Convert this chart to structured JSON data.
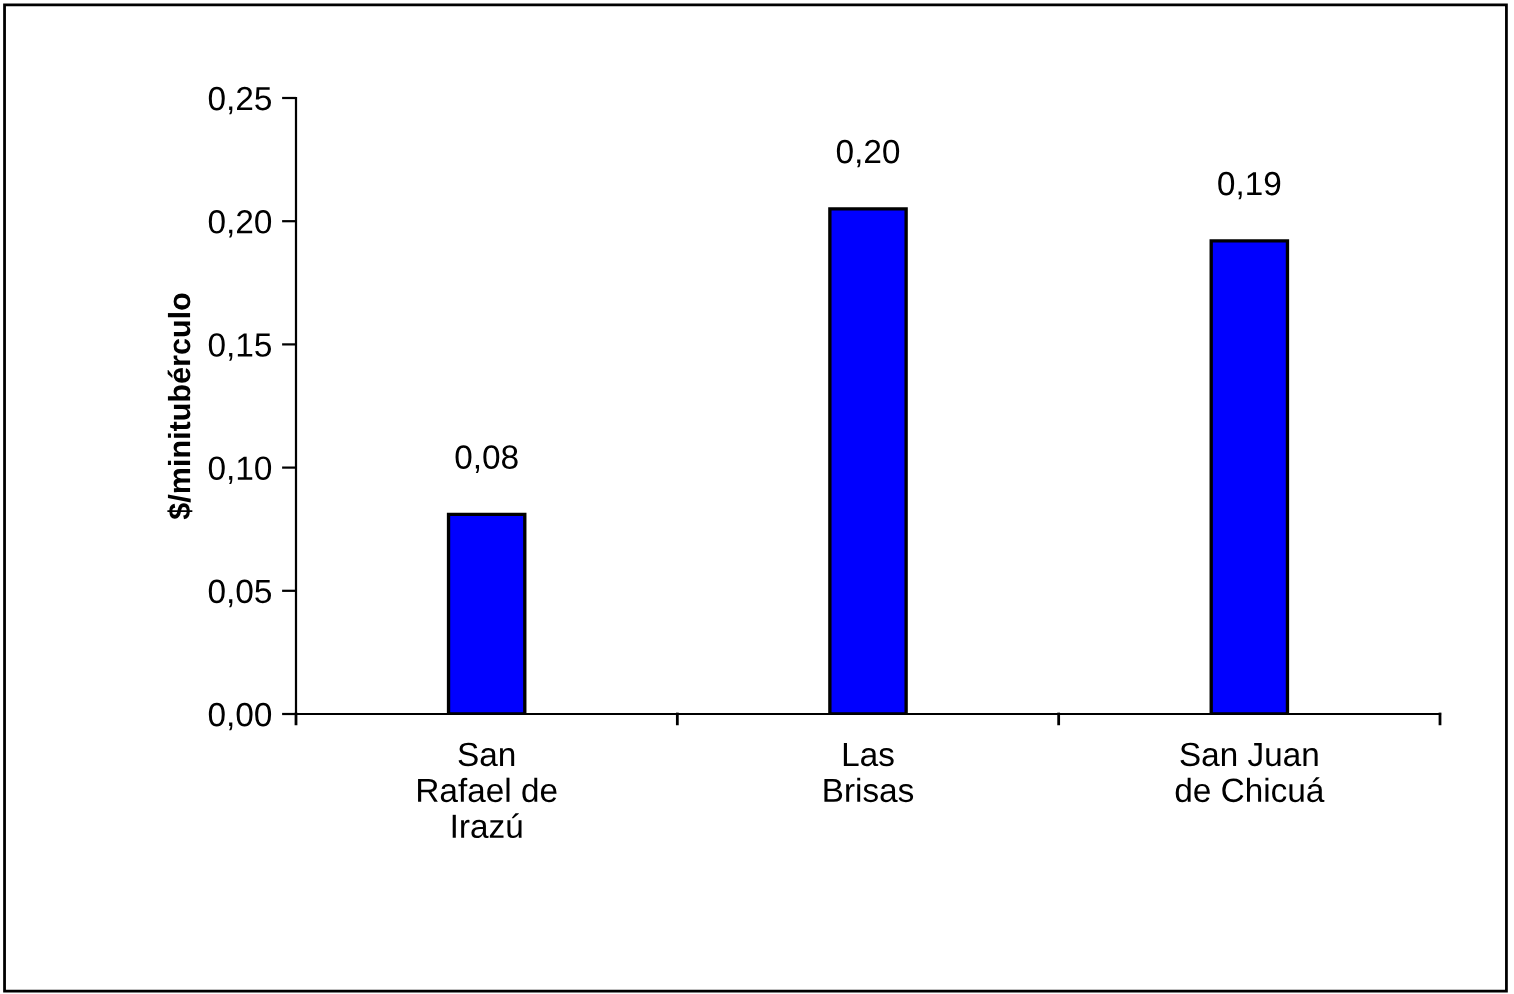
{
  "chart_data": {
    "type": "bar",
    "ylabel": "$/minitubérculo",
    "categories": [
      "San\nRafael de\nIrazú",
      "Las\nBrisas",
      "San Juan\nde Chicuá"
    ],
    "values": [
      0.081,
      0.205,
      0.192
    ],
    "value_labels": [
      "0,08",
      "0,20",
      "0,19"
    ],
    "color": "#0000ff",
    "ylim": [
      0,
      0.25
    ],
    "yticks": [
      {
        "value": 0,
        "label": "0,00"
      },
      {
        "value": 0.05,
        "label": "0,05"
      },
      {
        "value": 0.1,
        "label": "0,10"
      },
      {
        "value": 0.15,
        "label": "0,15"
      },
      {
        "value": 0.2,
        "label": "0,20"
      },
      {
        "value": 0.25,
        "label": "0,25"
      }
    ],
    "grid": false,
    "legend": false
  }
}
